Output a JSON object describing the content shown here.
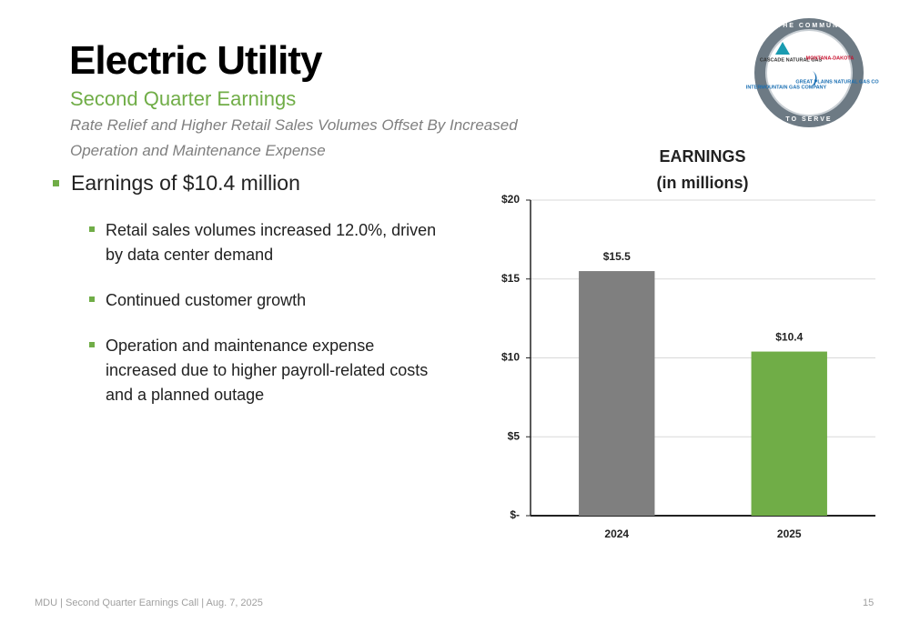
{
  "header": {
    "title": "Electric Utility",
    "subtitle": "Second Quarter Earnings",
    "tagline": [
      "Rate Relief and Higher Retail Sales Volumes Offset By Increased",
      "Operation and Maintenance Expense"
    ]
  },
  "logo": {
    "ring_top": "IN THE COMMUNITY",
    "ring_bottom": "TO SERVE",
    "names": [
      "CASCADE NATURAL GAS",
      "MONTANA-DAKOTA",
      "INTERMOUNTAIN GAS COMPANY",
      "GREAT PLAINS NATURAL GAS CO"
    ]
  },
  "bullets": {
    "main": "Earnings of $10.4 million",
    "sub": [
      [
        "Retail sales volumes increased 12.0%, driven",
        "by data center demand"
      ],
      [
        "Continued customer growth"
      ],
      [
        "Operation and maintenance expense",
        "increased due to higher payroll-related costs",
        "and a planned outage"
      ]
    ]
  },
  "chart": {
    "type": "bar",
    "title": [
      "EARNINGS",
      "(in millions)"
    ],
    "categories": [
      "2024",
      "2025"
    ],
    "values": [
      15.5,
      10.4
    ],
    "value_labels": [
      "$15.5",
      "$10.4"
    ],
    "colors": [
      "#7f7f7f",
      "#70ad47"
    ],
    "ylim": [
      0,
      20
    ],
    "yticks": [
      {
        "value": 0,
        "label": "$-"
      },
      {
        "value": 5,
        "label": "$5"
      },
      {
        "value": 10,
        "label": "$10"
      },
      {
        "value": 15,
        "label": "$15"
      },
      {
        "value": 20,
        "label": "$20"
      }
    ],
    "grid": true
  },
  "footer": {
    "left": "MDU  |  Second Quarter Earnings Call  |  Aug. 7, 2025",
    "page": "15"
  }
}
